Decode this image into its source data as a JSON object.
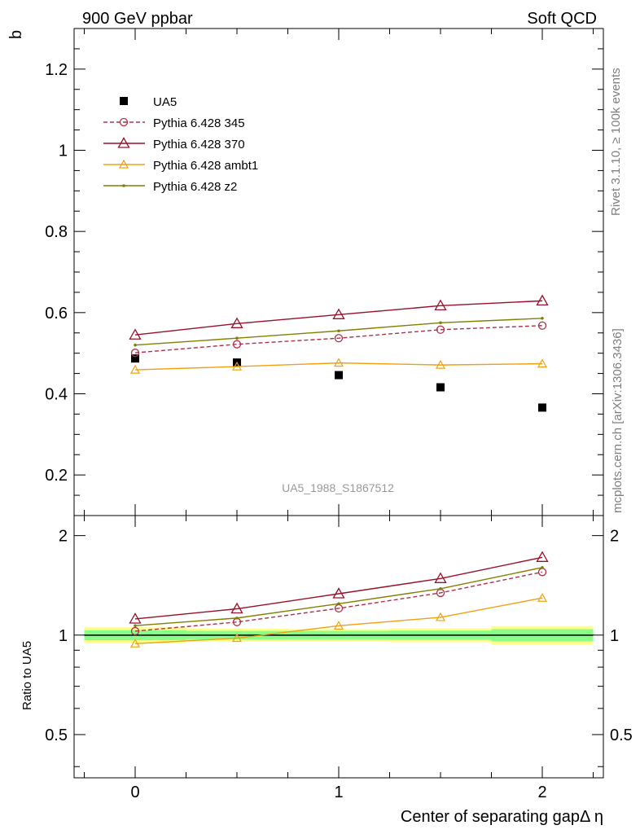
{
  "header": {
    "left": "900 GeV ppbar",
    "right": "Soft QCD"
  },
  "side_labels": {
    "rivet": "Rivet 3.1.10, ≥ 100k events",
    "mcplots": "mcplots.cern.ch [arXiv:1306.3436]"
  },
  "watermark": "UA5_1988_S1867512",
  "colors": {
    "ua5": "#000000",
    "p345": "#b0304a",
    "p370": "#98102a",
    "ambt1": "#f0a010",
    "z2": "#808000",
    "band_inner": "#88ff88",
    "band_outer": "#ffff88"
  },
  "chart_data": [
    {
      "type": "scatter",
      "ylabel": "b",
      "xlabel": "",
      "xlim": [
        -0.3,
        2.3
      ],
      "ylim": [
        0.1,
        1.3
      ],
      "yticks": [
        0.2,
        0.4,
        0.6,
        0.8,
        1.0,
        1.2
      ],
      "ytick_labels": [
        "0.2",
        "0.4",
        "0.6",
        "0.8",
        "1",
        "1.2"
      ],
      "legend_position": "top-left",
      "x": [
        0,
        0.5,
        1.0,
        1.5,
        2.0
      ],
      "series": [
        {
          "key": "ua5",
          "name": "UA5",
          "marker": "square",
          "line": "none",
          "values": [
            0.487,
            0.477,
            0.446,
            0.416,
            0.366
          ]
        },
        {
          "key": "p345",
          "name": "Pythia 6.428 345",
          "marker": "open-circle",
          "line": "dashed",
          "values": [
            0.501,
            0.522,
            0.537,
            0.558,
            0.568
          ]
        },
        {
          "key": "p370",
          "name": "Pythia 6.428 370",
          "marker": "open-triangle",
          "line": "solid",
          "values": [
            0.545,
            0.573,
            0.595,
            0.617,
            0.629
          ]
        },
        {
          "key": "ambt1",
          "name": "Pythia 6.428 ambt1",
          "marker": "open-triangle-small",
          "line": "solid",
          "values": [
            0.459,
            0.467,
            0.476,
            0.471,
            0.474
          ]
        },
        {
          "key": "z2",
          "name": "Pythia 6.428 z2",
          "marker": "dot",
          "line": "solid",
          "values": [
            0.52,
            0.537,
            0.555,
            0.575,
            0.586
          ]
        }
      ]
    },
    {
      "type": "line",
      "ylabel": "Ratio to UA5",
      "xlabel": "Center of separating gapΔ η",
      "xlim": [
        -0.3,
        2.3
      ],
      "ylim": [
        0.37,
        2.3
      ],
      "yscale": "log",
      "yticks": [
        0.5,
        1,
        2
      ],
      "ytick_labels": [
        "0.5",
        "1",
        "2"
      ],
      "xticks": [
        0,
        1,
        2
      ],
      "xtick_labels": [
        "0",
        "1",
        "2"
      ],
      "x": [
        0,
        0.5,
        1.0,
        1.5,
        2.0
      ],
      "reference": 1,
      "band_edges": [
        -0.25,
        0.25,
        0.75,
        1.25,
        1.75,
        2.25
      ],
      "band_inner": [
        [
          0.965,
          1.035
        ],
        [
          0.97,
          1.03
        ],
        [
          0.97,
          1.03
        ],
        [
          0.968,
          1.032
        ],
        [
          0.958,
          1.042
        ]
      ],
      "band_outer": [
        [
          0.945,
          1.055
        ],
        [
          0.955,
          1.045
        ],
        [
          0.958,
          1.042
        ],
        [
          0.952,
          1.048
        ],
        [
          0.935,
          1.065
        ]
      ],
      "series": [
        {
          "key": "p345",
          "values": [
            1.028,
            1.095,
            1.205,
            1.342,
            1.552
          ]
        },
        {
          "key": "p370",
          "values": [
            1.119,
            1.201,
            1.334,
            1.483,
            1.719
          ]
        },
        {
          "key": "ambt1",
          "values": [
            0.942,
            0.979,
            1.067,
            1.132,
            1.295
          ]
        },
        {
          "key": "z2",
          "values": [
            1.068,
            1.126,
            1.244,
            1.382,
            1.601
          ]
        }
      ]
    }
  ]
}
